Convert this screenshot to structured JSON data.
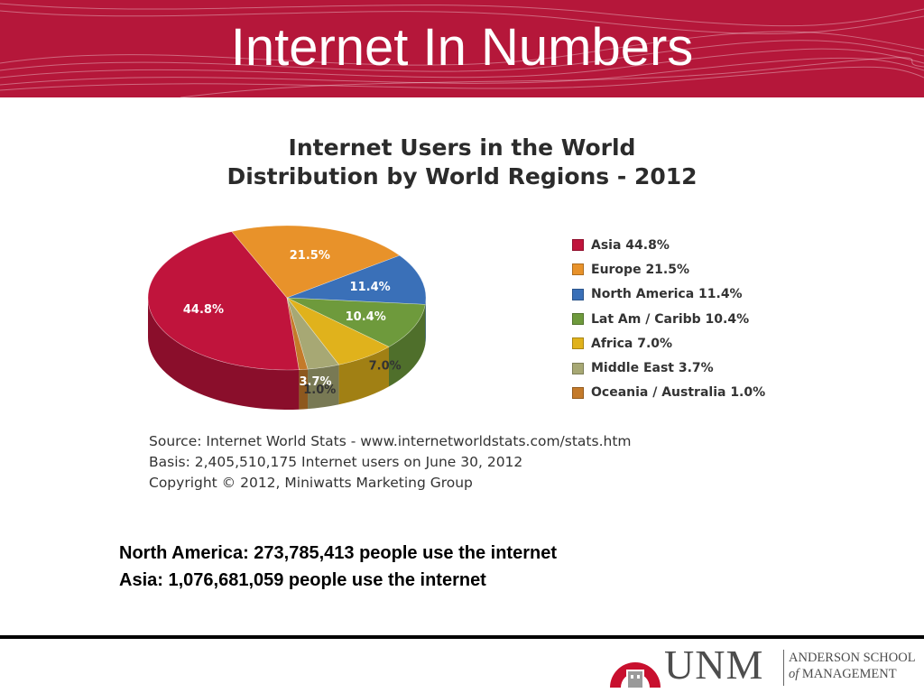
{
  "slide": {
    "title": "Internet In Numbers"
  },
  "chart_data": {
    "type": "pie",
    "title": "Internet Users in the World",
    "subtitle": "Distribution by World Regions - 2012",
    "series": [
      {
        "name": "Asia",
        "value": 44.8,
        "label": "44.8%",
        "legend": "Asia  44.8%",
        "color": "#c0143c"
      },
      {
        "name": "Europe",
        "value": 21.5,
        "label": "21.5%",
        "legend": "Europe  21.5%",
        "color": "#e8922a"
      },
      {
        "name": "North America",
        "value": 11.4,
        "label": "11.4%",
        "legend": "North America  11.4%",
        "color": "#3a70b8"
      },
      {
        "name": "Lat Am / Caribb",
        "value": 10.4,
        "label": "10.4%",
        "legend": "Lat Am / Caribb  10.4%",
        "color": "#6e9a3c"
      },
      {
        "name": "Africa",
        "value": 7.0,
        "label": "7.0%",
        "legend": "Africa  7.0%",
        "color": "#e0b21c"
      },
      {
        "name": "Middle East",
        "value": 3.7,
        "label": "3.7%",
        "legend": "Middle East  3.7%",
        "color": "#a7a874"
      },
      {
        "name": "Oceania / Australia",
        "value": 1.0,
        "label": "1.0%",
        "legend": "Oceania / Australia  1.0%",
        "color": "#c47a2a"
      }
    ],
    "legend_position": "right"
  },
  "source": {
    "line1": "Source: Internet World Stats -  www.internetworldstats.com/stats.htm",
    "line2": "Basis: 2,405,510,175 Internet users on June 30, 2012",
    "line3": "Copyright © 2012, Miniwatts Marketing Group"
  },
  "notes": {
    "north_america": "North America: 273,785,413 people use the internet",
    "asia": "Asia: 1,076,681,059 people use the internet"
  },
  "logo": {
    "unm": "UNM",
    "school_line1": "ANDERSON SCHOOL",
    "school_line2_italic": "of",
    "school_line2": " MANAGEMENT"
  },
  "colors": {
    "header_red": "#b5173a",
    "footer_rule": "#000000"
  }
}
